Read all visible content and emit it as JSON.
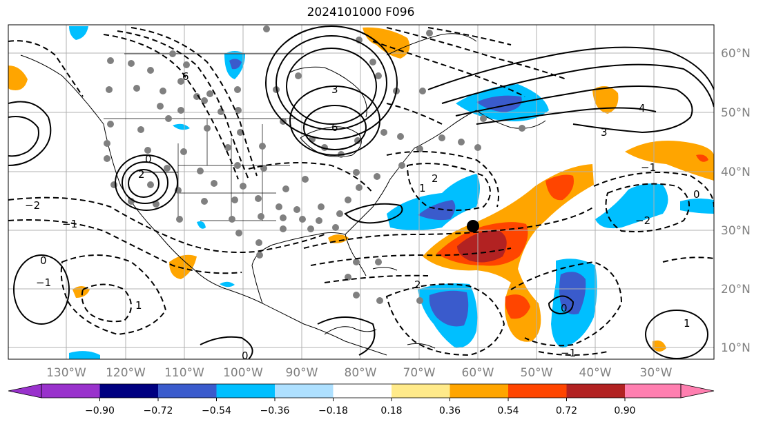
{
  "title": "2024101000 F096",
  "lon_ticks": [
    "130°W",
    "120°W",
    "110°W",
    "100°W",
    "90°W",
    "80°W",
    "70°W",
    "60°W",
    "50°W",
    "40°W",
    "30°W"
  ],
  "lat_ticks": [
    "60°N",
    "50°N",
    "40°N",
    "30°N",
    "20°N",
    "10°N"
  ],
  "colorbar": {
    "ticks": [
      "−0.90",
      "−0.72",
      "−0.54",
      "−0.36",
      "−0.18",
      "0.18",
      "0.36",
      "0.54",
      "0.72",
      "0.90"
    ],
    "colors": [
      "#9932cc",
      "#000080",
      "#3a5bcc",
      "#00bfff",
      "#aee0ff",
      "#ffffff",
      "#ffea8a",
      "#ffa500",
      "#ff4500",
      "#b22222",
      "#ff7fb0"
    ]
  },
  "contour_labels": [
    "0",
    "2",
    "6",
    "−2",
    "3",
    "6",
    "4",
    "−1",
    "2",
    "1",
    "0",
    "−2",
    "3",
    "−1",
    "0",
    "−1",
    "2",
    "1",
    "0",
    "−1",
    "0",
    "1"
  ],
  "map_colors": {
    "ocean_bg": "#ffffff",
    "grid": "#b0b0b0",
    "coast": "#000000",
    "positive_fill": "#ffa500",
    "positive_mid": "#ff4500",
    "positive_high": "#b22222",
    "negative_fill": "#00bfff",
    "negative_mid": "#3a5bcc",
    "station_dot": "#808080",
    "center_marker": "#000000"
  }
}
